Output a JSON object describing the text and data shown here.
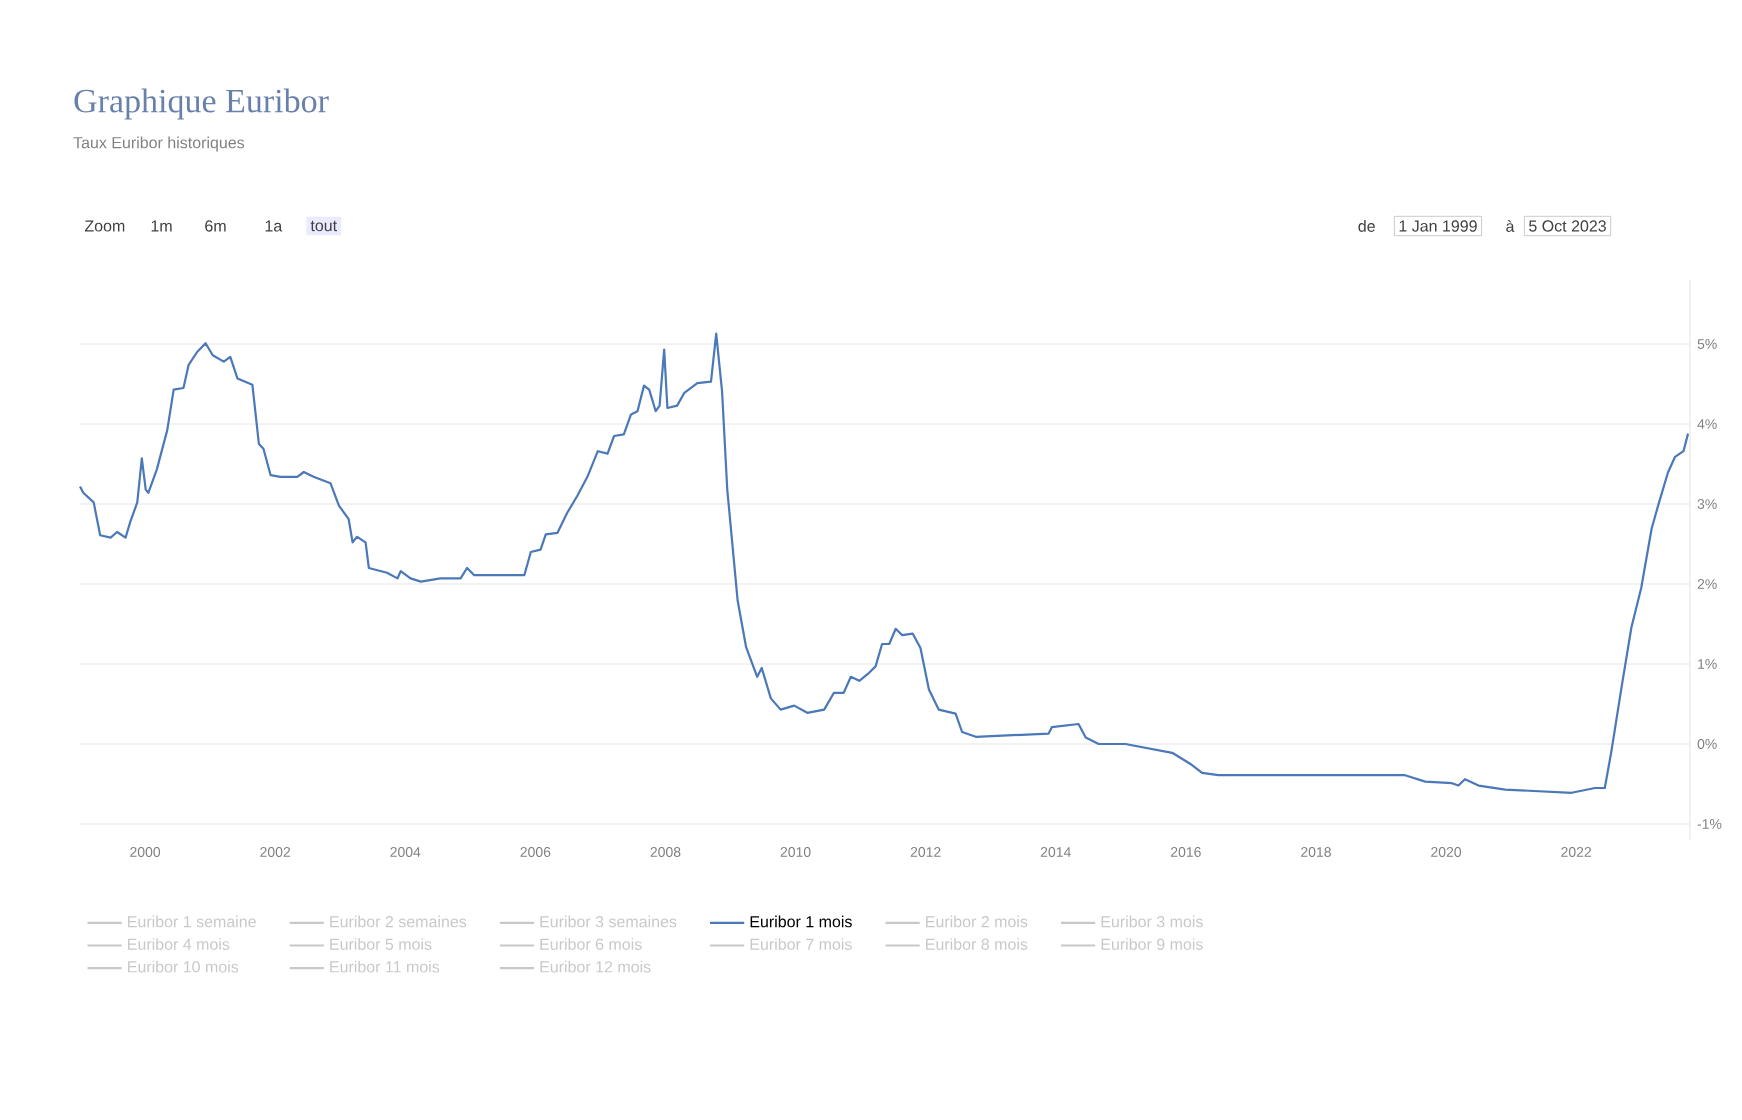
{
  "chart_data": {
    "type": "line",
    "title": "Graphique Euribor",
    "subtitle": "Taux Euribor historiques",
    "annotations": [
      "Zoom",
      "1m",
      "6m",
      "1a",
      "tout",
      "de",
      "1 Jan 1999",
      "à",
      "5 Oct 2023"
    ],
    "xlim": [
      1999.0,
      2023.75
    ],
    "xticks": [
      2000,
      2002,
      2004,
      2006,
      2008,
      2010,
      2012,
      2014,
      2016,
      2018,
      2020,
      2022
    ],
    "ylim": [
      -1.2,
      5.8
    ],
    "yticks": [
      {
        "value": -1,
        "label": "-1%"
      },
      {
        "value": 0,
        "label": "0%"
      },
      {
        "value": 1,
        "label": "1%"
      },
      {
        "value": 2,
        "label": "2%"
      },
      {
        "value": 3,
        "label": "3%"
      },
      {
        "value": 4,
        "label": "4%"
      },
      {
        "value": 5,
        "label": "5%"
      }
    ],
    "grid": "y",
    "legend": "bottom",
    "marker": "none",
    "line_style": "solid",
    "series": [
      {
        "name": "Euribor 1 semaine",
        "color": "#c8c8c8"
      },
      {
        "name": "Euribor 2 semaines",
        "color": "#c8c8c8"
      },
      {
        "name": "Euribor 3 semaines",
        "color": "#c8c8c8"
      },
      {
        "name": "Euribor 1 mois",
        "color": "#4a78b8",
        "x": [
          1999.0,
          1999.05,
          1999.21,
          1999.31,
          1999.47,
          1999.57,
          1999.7,
          1999.77,
          1999.88,
          1999.95,
          2000.01,
          2000.05,
          2000.18,
          2000.34,
          2000.44,
          2000.59,
          2000.67,
          2000.8,
          2000.93,
          2001.04,
          2001.21,
          2001.31,
          2001.42,
          2001.65,
          2001.75,
          2001.82,
          2001.93,
          2002.08,
          2002.34,
          2002.44,
          2002.59,
          2002.85,
          2002.98,
          2003.13,
          2003.19,
          2003.26,
          2003.39,
          2003.44,
          2003.72,
          2003.88,
          2003.93,
          2004.08,
          2004.24,
          2004.54,
          2004.85,
          2004.95,
          2005.06,
          2005.83,
          2005.93,
          2006.08,
          2006.16,
          2006.34,
          2006.49,
          2006.65,
          2006.8,
          2006.96,
          2007.11,
          2007.21,
          2007.36,
          2007.47,
          2007.57,
          2007.67,
          2007.75,
          2007.85,
          2007.91,
          2007.98,
          2008.03,
          2008.18,
          2008.29,
          2008.49,
          2008.7,
          2008.78,
          2008.87,
          2008.95,
          2009.11,
          2009.24,
          2009.41,
          2009.48,
          2009.62,
          2009.77,
          2009.98,
          2010.18,
          2010.44,
          2010.59,
          2010.74,
          2010.85,
          2010.98,
          2011.13,
          2011.23,
          2011.33,
          2011.44,
          2011.54,
          2011.64,
          2011.8,
          2011.92,
          2012.05,
          2012.2,
          2012.46,
          2012.56,
          2012.77,
          2013.89,
          2013.94,
          2014.35,
          2014.46,
          2014.66,
          2015.07,
          2015.79,
          2016.09,
          2016.25,
          2016.5,
          2019.37,
          2019.68,
          2020.09,
          2020.19,
          2020.29,
          2020.5,
          2020.91,
          2021.93,
          2022.29,
          2022.44,
          2022.54,
          2022.7,
          2022.85,
          2023.0,
          2023.16,
          2023.26,
          2023.41,
          2023.52,
          2023.65,
          2023.72
        ],
        "values": [
          3.22,
          3.14,
          3.02,
          2.61,
          2.58,
          2.65,
          2.58,
          2.77,
          3.02,
          3.57,
          3.18,
          3.14,
          3.43,
          3.92,
          4.43,
          4.45,
          4.74,
          4.9,
          5.01,
          4.86,
          4.78,
          4.84,
          4.57,
          4.49,
          3.75,
          3.69,
          3.36,
          3.34,
          3.34,
          3.4,
          3.34,
          3.26,
          2.98,
          2.81,
          2.52,
          2.59,
          2.52,
          2.2,
          2.14,
          2.07,
          2.16,
          2.07,
          2.03,
          2.07,
          2.07,
          2.2,
          2.11,
          2.11,
          2.4,
          2.43,
          2.62,
          2.64,
          2.89,
          3.11,
          3.34,
          3.66,
          3.63,
          3.85,
          3.87,
          4.12,
          4.16,
          4.48,
          4.43,
          4.16,
          4.23,
          4.93,
          4.2,
          4.23,
          4.39,
          4.51,
          4.53,
          5.13,
          4.41,
          3.18,
          1.79,
          1.21,
          0.84,
          0.95,
          0.57,
          0.43,
          0.48,
          0.39,
          0.43,
          0.64,
          0.64,
          0.84,
          0.79,
          0.89,
          0.97,
          1.25,
          1.25,
          1.44,
          1.36,
          1.38,
          1.2,
          0.68,
          0.43,
          0.38,
          0.15,
          0.09,
          0.13,
          0.21,
          0.25,
          0.08,
          0.0,
          0.0,
          -0.11,
          -0.26,
          -0.36,
          -0.39,
          -0.39,
          -0.47,
          -0.49,
          -0.52,
          -0.44,
          -0.52,
          -0.57,
          -0.61,
          -0.55,
          -0.55,
          -0.1,
          0.72,
          1.46,
          1.95,
          2.69,
          2.98,
          3.39,
          3.59,
          3.66,
          3.88
        ]
      },
      {
        "name": "Euribor 2 mois",
        "color": "#c8c8c8"
      },
      {
        "name": "Euribor 3 mois",
        "color": "#c8c8c8"
      },
      {
        "name": "Euribor 4 mois",
        "color": "#c8c8c8"
      },
      {
        "name": "Euribor 5 mois",
        "color": "#c8c8c8"
      },
      {
        "name": "Euribor 6 mois",
        "color": "#c8c8c8"
      },
      {
        "name": "Euribor 7 mois",
        "color": "#c8c8c8"
      },
      {
        "name": "Euribor 8 mois",
        "color": "#c8c8c8"
      },
      {
        "name": "Euribor 9 mois",
        "color": "#c8c8c8"
      },
      {
        "name": "Euribor 10 mois",
        "color": "#c8c8c8"
      },
      {
        "name": "Euribor 11 mois",
        "color": "#c8c8c8"
      },
      {
        "name": "Euribor 12 mois",
        "color": "#c8c8c8"
      }
    ]
  }
}
